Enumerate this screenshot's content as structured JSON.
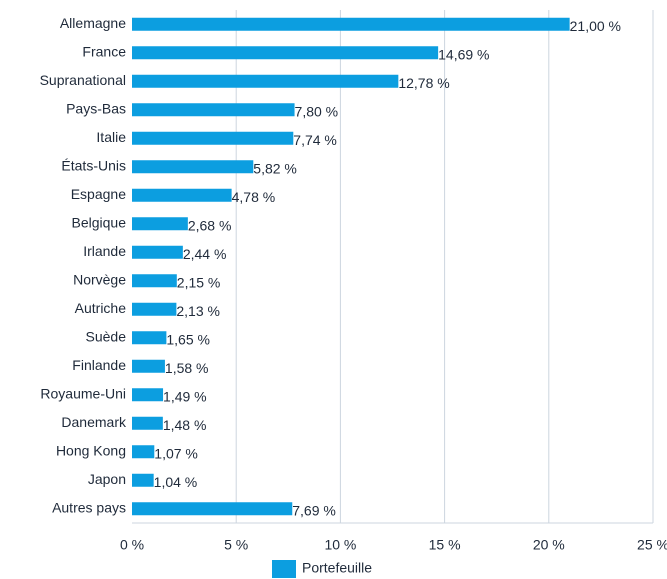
{
  "chart_data": {
    "type": "bar",
    "orientation": "horizontal",
    "categories": [
      "Allemagne",
      "France",
      "Supranational",
      "Pays-Bas",
      "Italie",
      "États-Unis",
      "Espagne",
      "Belgique",
      "Irlande",
      "Norvège",
      "Autriche",
      "Suède",
      "Finlande",
      "Royaume-Uni",
      "Danemark",
      "Hong Kong",
      "Japon",
      "Autres pays"
    ],
    "series": [
      {
        "name": "Portefeuille",
        "color": "#0c9ee0",
        "values": [
          21.0,
          14.69,
          12.78,
          7.8,
          7.74,
          5.82,
          4.78,
          2.68,
          2.44,
          2.15,
          2.13,
          1.65,
          1.58,
          1.49,
          1.48,
          1.07,
          1.04,
          7.69
        ],
        "value_labels": [
          "21,00 %",
          "14,69 %",
          "12,78 %",
          "7,80 %",
          "7,74 %",
          "5,82 %",
          "4,78 %",
          "2,68 %",
          "2,44 %",
          "2,15 %",
          "2,13 %",
          "1,65 %",
          "1,58 %",
          "1,49 %",
          "1,48 %",
          "1,07 %",
          "1,04 %",
          "7,69 %"
        ]
      }
    ],
    "xlim": [
      0,
      25
    ],
    "xticks": [
      {
        "value": 0,
        "label": "0 %"
      },
      {
        "value": 5,
        "label": "5 %"
      },
      {
        "value": 10,
        "label": "10 %"
      },
      {
        "value": 15,
        "label": "15 %"
      },
      {
        "value": 20,
        "label": "20 %"
      },
      {
        "value": 25,
        "label": "25 %"
      }
    ],
    "grid": true,
    "legend": "bottom"
  }
}
